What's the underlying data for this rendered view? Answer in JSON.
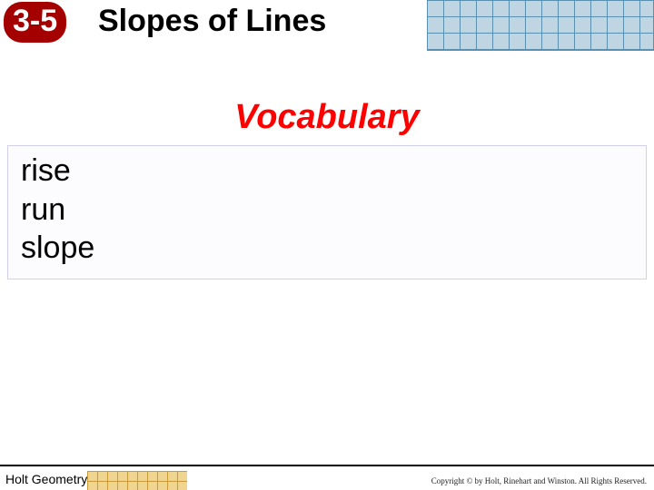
{
  "header": {
    "lesson_number": "3-5",
    "title": "Slopes of Lines",
    "badge_bg": "#a50000",
    "badge_color": "#ffffff",
    "grid_bg": "#bfd6e2",
    "grid_line": "#5a8fb0"
  },
  "content": {
    "heading": "Vocabulary",
    "heading_color": "#ff0000",
    "terms": [
      "rise",
      "run",
      "slope"
    ],
    "box_border": "#d0d0ea"
  },
  "footer": {
    "text": "Holt Geometry",
    "copyright": "Copyright © by Holt, Rinehart and Winston. All Rights Reserved.",
    "grid_bg": "#f0d590",
    "grid_line": "#c79a3a"
  }
}
